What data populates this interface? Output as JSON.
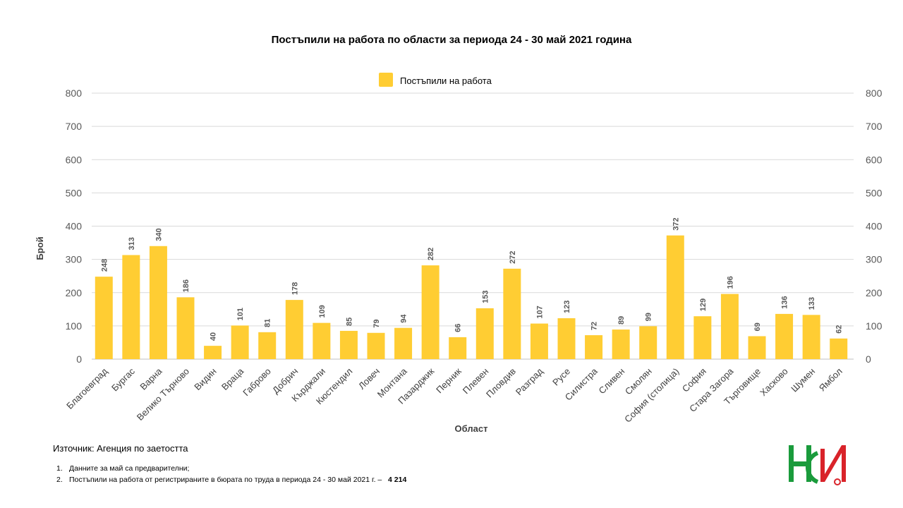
{
  "title": "Постъпили на работа по области за периода 24 - 30 май 2021 година",
  "source": "Източник: Агенция по заетостта",
  "notes": [
    {
      "num": "1.",
      "text": "Данните за май са предварителни;"
    },
    {
      "num": "2.",
      "text": "Постъпили на работа от регистрираните в бюрата по труда в периода 24 - 30 май 2021 г. –",
      "total": "4 214"
    }
  ],
  "logo_text": "НСИ",
  "colors": {
    "bar": "#FFCD33",
    "grid": "#D9D9D9",
    "logo_green": "#1a9b3c",
    "logo_red": "#d9232a"
  },
  "chart_data": {
    "type": "bar",
    "title": "Постъпили на работа по области за периода 24 - 30 май 2021 година",
    "xlabel": "Област",
    "ylabel": "Брой",
    "ylim": [
      0,
      800
    ],
    "yticks": [
      0,
      100,
      200,
      300,
      400,
      500,
      600,
      700,
      800
    ],
    "grid": true,
    "legend_position": "top-center",
    "categories": [
      "Благоевград",
      "Бургас",
      "Варна",
      "Велико Търново",
      "Видин",
      "Враца",
      "Габрово",
      "Добрич",
      "Кърджали",
      "Кюстендил",
      "Ловеч",
      "Монтана",
      "Пазарджик",
      "Перник",
      "Плевен",
      "Пловдив",
      "Разград",
      "Русе",
      "Силистра",
      "Сливен",
      "Смолян",
      "София (столица)",
      "София",
      "Стара Загора",
      "Търговище",
      "Хасково",
      "Шумен",
      "Ямбол"
    ],
    "series": [
      {
        "name": "Постъпили на работа",
        "values": [
          248,
          313,
          340,
          186,
          40,
          101,
          81,
          178,
          109,
          85,
          79,
          94,
          282,
          66,
          153,
          272,
          107,
          123,
          72,
          89,
          99,
          372,
          129,
          196,
          69,
          136,
          133,
          62
        ]
      }
    ]
  }
}
